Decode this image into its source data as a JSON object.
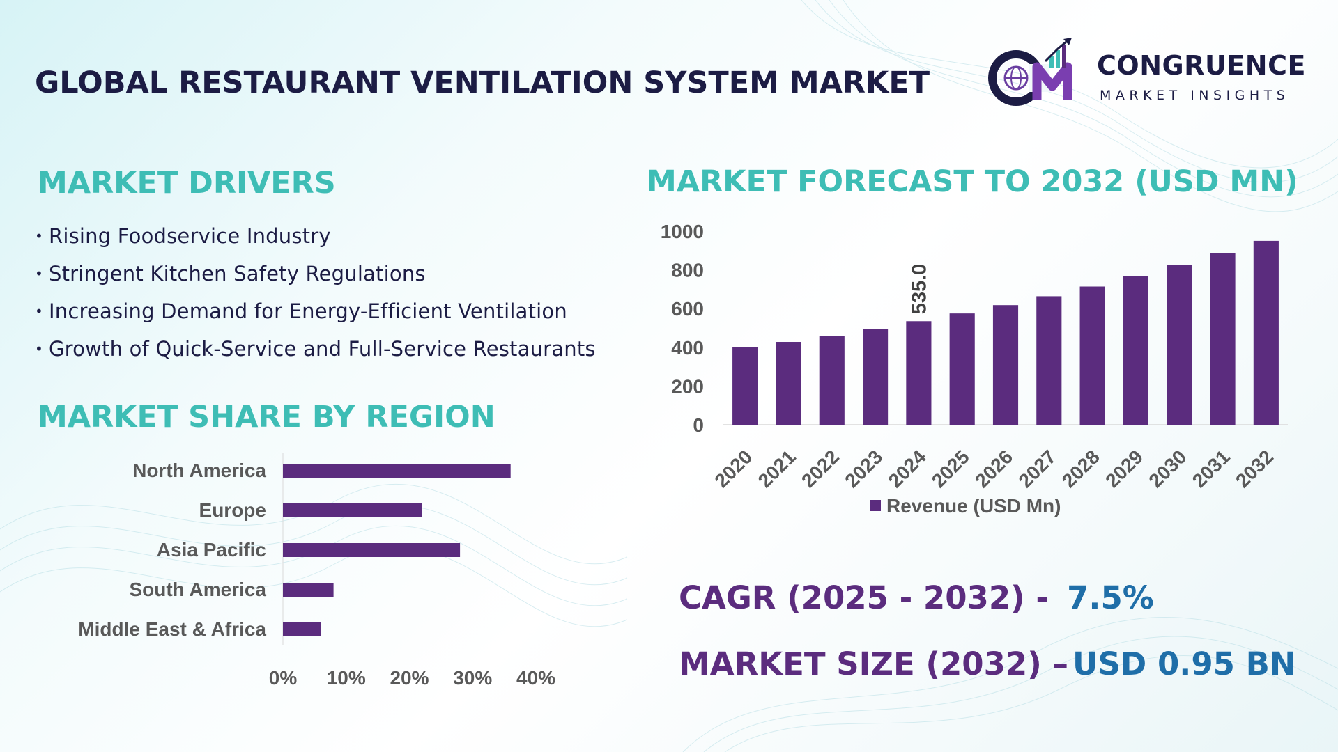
{
  "header": {
    "title": "GLOBAL RESTAURANT VENTILATION SYSTEM MARKET",
    "brand_name": "CONGRUENCE",
    "brand_sub": "MARKET INSIGHTS"
  },
  "drivers": {
    "title": "MARKET DRIVERS",
    "items": [
      "Rising Foodservice Industry",
      "Stringent Kitchen Safety Regulations",
      "Increasing Demand for Energy-Efficient Ventilation",
      "Growth of Quick-Service and Full-Service Restaurants"
    ]
  },
  "region": {
    "title": "MARKET SHARE BY REGION"
  },
  "forecast": {
    "title": "MARKET FORECAST TO 2032 (USD MN)"
  },
  "stats": {
    "cagr_label": "CAGR (2025 - 2032) -",
    "cagr_value": "7.5%",
    "size_label": "MARKET SIZE (2032) –",
    "size_value": "USD 0.95 BN"
  },
  "colors": {
    "bar": "#5b2c7e",
    "accent": "#3ebdb5",
    "axis_text": "#595959"
  },
  "chart_data": [
    {
      "type": "bar",
      "orientation": "horizontal",
      "title": "MARKET SHARE BY REGION",
      "categories": [
        "North America",
        "Europe",
        "Asia Pacific",
        "South America",
        "Middle East & Africa"
      ],
      "values": [
        36,
        22,
        28,
        8,
        6
      ],
      "unit": "%",
      "xlim": [
        0,
        40
      ],
      "ticks": [
        0,
        10,
        20,
        30,
        40
      ],
      "tick_labels": [
        "0%",
        "10%",
        "20%",
        "30%",
        "40%"
      ]
    },
    {
      "type": "bar",
      "title": "MARKET FORECAST TO 2032 (USD MN)",
      "categories": [
        "2020",
        "2021",
        "2022",
        "2023",
        "2024",
        "2025",
        "2026",
        "2027",
        "2028",
        "2029",
        "2030",
        "2031",
        "2032"
      ],
      "series": [
        {
          "name": "Revenue (USD Mn)",
          "values": [
            400,
            428,
            460,
            495,
            535,
            575,
            618,
            664,
            714,
            768,
            825,
            887,
            950
          ]
        }
      ],
      "annotations": [
        {
          "category": "2024",
          "label": "535.0"
        }
      ],
      "ylim": [
        0,
        1000
      ],
      "yticks": [
        0,
        200,
        400,
        600,
        800,
        1000
      ],
      "legend": "bottom"
    }
  ]
}
